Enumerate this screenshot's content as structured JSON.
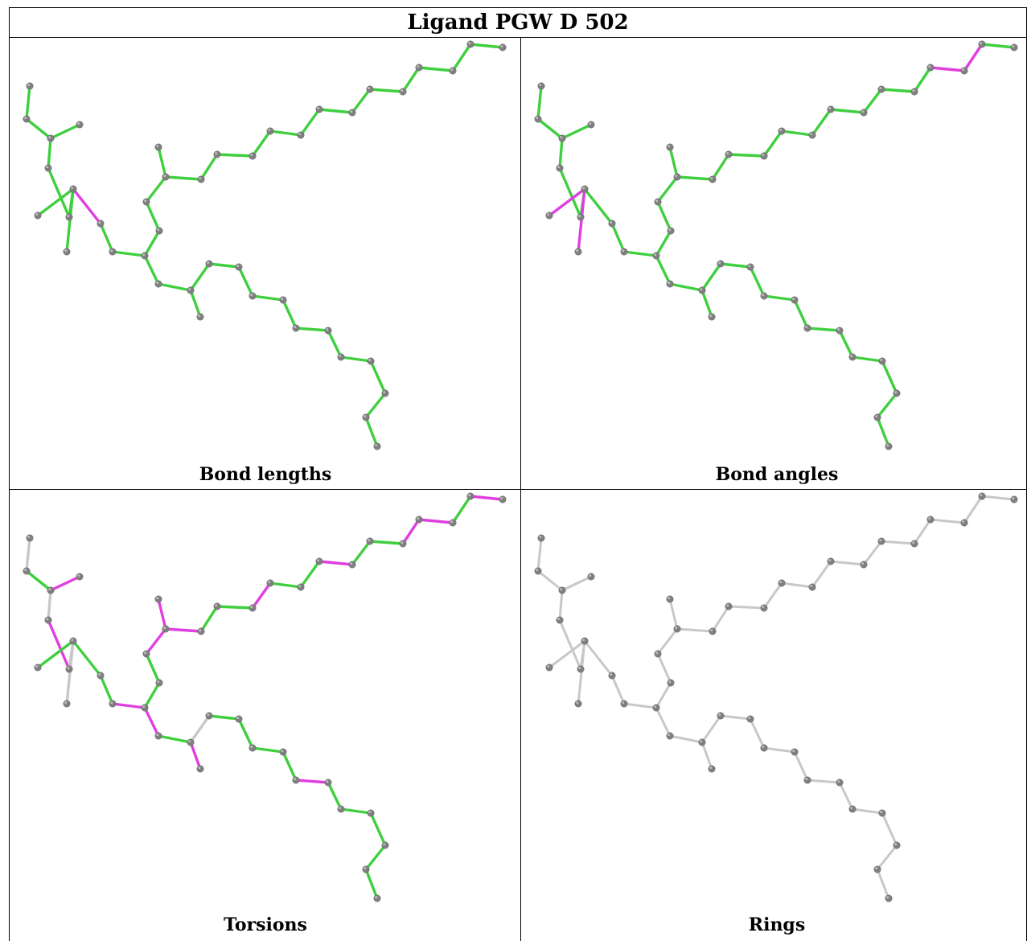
{
  "title": "Ligand PGW D 502",
  "colors": {
    "ok": "#3fcf3f",
    "outlier": "#e03ee0",
    "unassessed": "#c8c8c8",
    "atom": "#808080",
    "atom_highlight": "#bdbdbd"
  },
  "panels": [
    {
      "caption": "Bond lengths",
      "highlight_bonds": [
        7
      ]
    },
    {
      "caption": "Bond angles",
      "highlight_bonds": [
        6,
        8,
        25,
        26
      ]
    },
    {
      "caption": "Torsions",
      "highlight_bonds": [
        2,
        4,
        10,
        13,
        14,
        15,
        18,
        21,
        24,
        25,
        27,
        28,
        30,
        36,
        44,
        46
      ]
    },
    {
      "caption": "Rings",
      "highlight_bonds": []
    }
  ]
}
